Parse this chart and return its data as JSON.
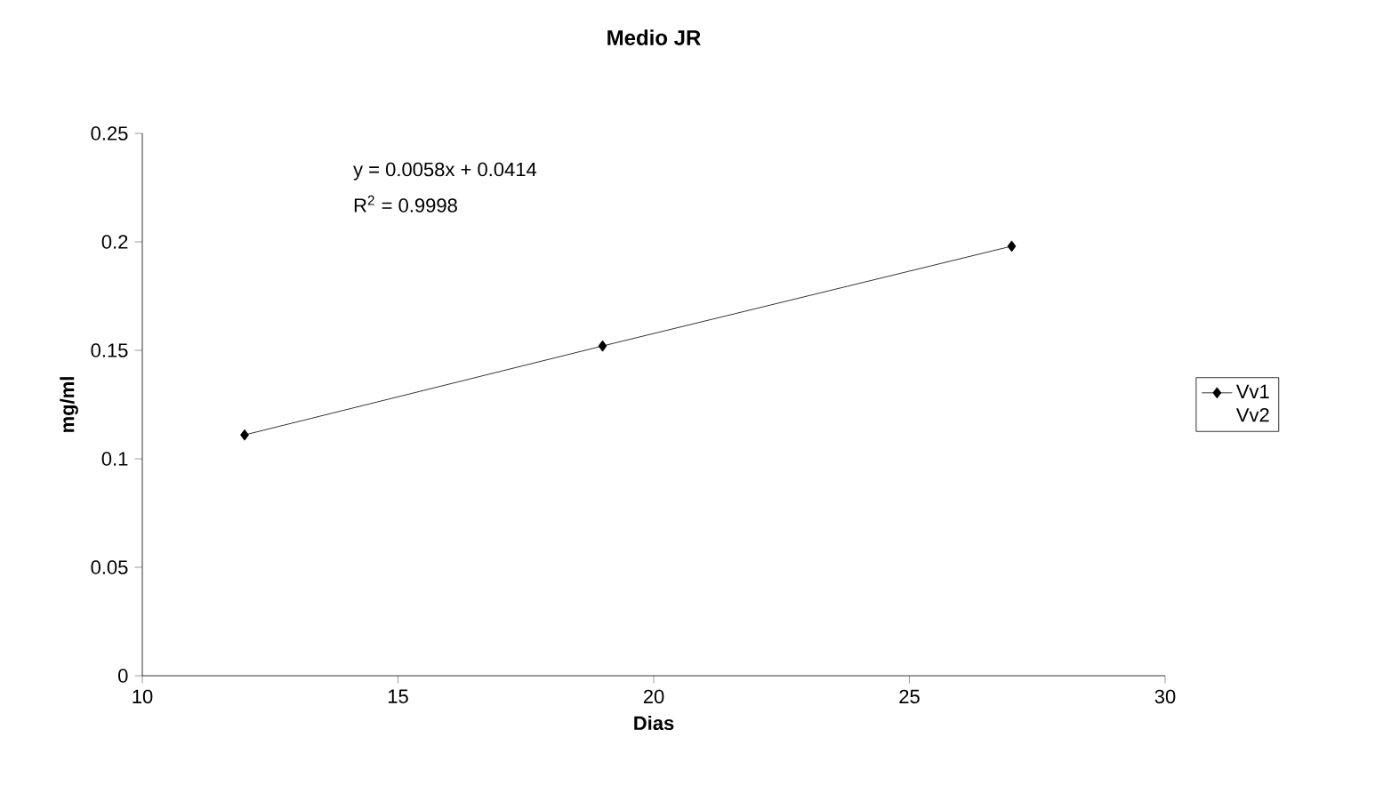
{
  "chart_data": {
    "type": "line",
    "title": "Medio JR",
    "xlabel": "Dias",
    "ylabel": "mg/ml",
    "x": [
      12,
      19,
      27
    ],
    "series": [
      {
        "name": "Vv1",
        "color": "#000000",
        "values": [
          0.111,
          0.152,
          0.198
        ],
        "marker": "diamond"
      },
      {
        "name": "Vv2",
        "values": [
          null,
          null,
          null
        ]
      }
    ],
    "xlim": [
      10,
      30
    ],
    "xticks": [
      10,
      15,
      20,
      25,
      30
    ],
    "ylim": [
      0,
      0.25
    ],
    "yticks": [
      0,
      0.05,
      0.1,
      0.15,
      0.2,
      0.25
    ],
    "annotations": [
      "y = 0.0058x + 0.0414",
      "R$^{2}$ = 0.9998"
    ],
    "legend": "right",
    "grid": false,
    "line_style": "solid"
  }
}
